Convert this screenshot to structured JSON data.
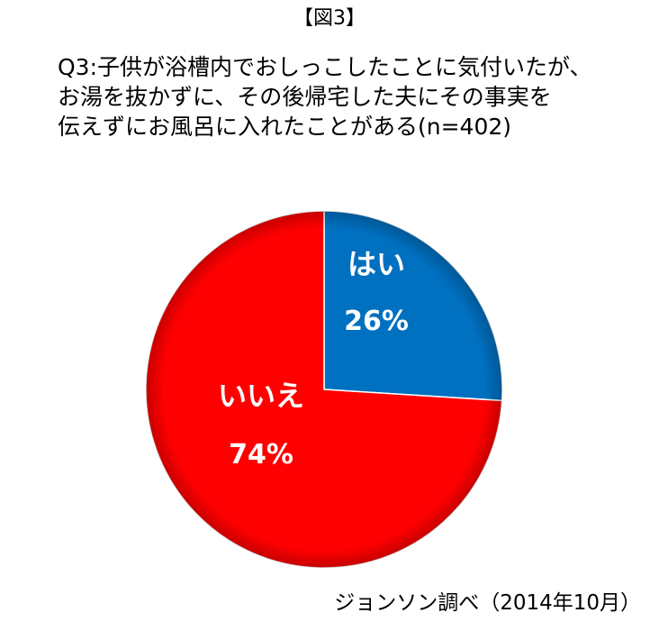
{
  "figure_label": "【図3】",
  "question": {
    "lines": [
      "Q3:子供が浴槽内でおしっこしたことに気付いたが、",
      "お湯を抜かずに、その後帰宅した夫にその事実を",
      "伝えずにお風呂に入れたことがある(n=402)"
    ]
  },
  "source": "ジョンソン調べ（2014年10月）",
  "chart_data": {
    "type": "pie",
    "title": "Q3:子供が浴槽内でおしっこしたことに気付いたが、お湯を抜かずに、その後帰宅した夫にその事実を伝えずにお風呂に入れたことがある(n=402)",
    "n": 402,
    "slices": [
      {
        "label": "はい",
        "value": 26,
        "display": "26%",
        "color": "#0070C0"
      },
      {
        "label": "いいえ",
        "value": 74,
        "display": "74%",
        "color": "#FF0000"
      }
    ],
    "start_angle": "12 o'clock",
    "direction": "clockwise",
    "legend": "none",
    "labels_inside_slices": true
  }
}
